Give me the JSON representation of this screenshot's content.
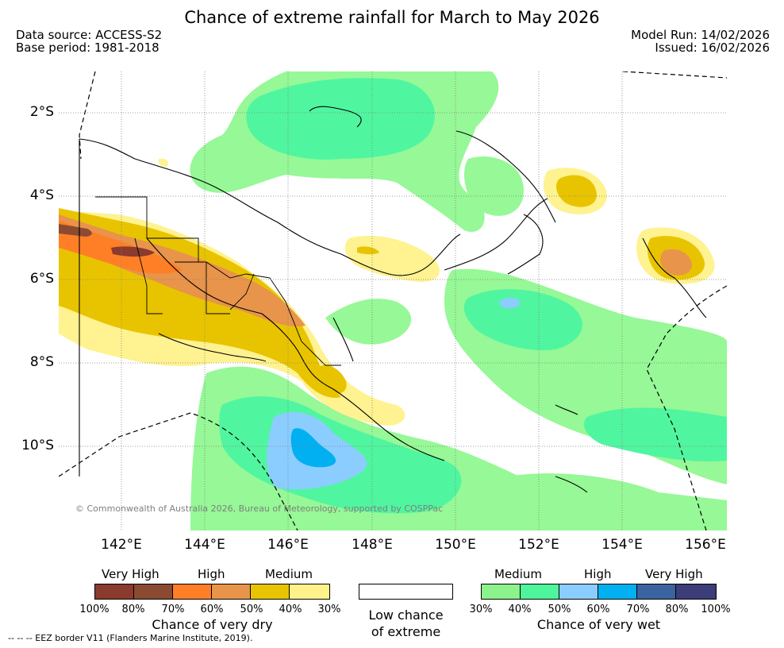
{
  "title": "Chance of extreme rainfall for March to May 2026",
  "meta": {
    "data_source": "Data source: ACCESS-S2",
    "base_period": "Base period: 1981-2018",
    "model_run": "Model Run: 14/02/2026",
    "issued": "Issued: 16/02/2026"
  },
  "map": {
    "lat_labels": [
      "2°S",
      "4°S",
      "6°S",
      "8°S",
      "10°S"
    ],
    "lon_labels": [
      "142°E",
      "144°E",
      "146°E",
      "148°E",
      "150°E",
      "152°E",
      "154°E",
      "156°E"
    ],
    "copyright": "© Commonwealth of Australia 2026, Bureau of Meteorology, supported by COSPPac"
  },
  "legend": {
    "dry": {
      "categories": [
        "Very High",
        "High",
        "Medium"
      ],
      "ticks": [
        "100%",
        "80%",
        "70%",
        "60%",
        "50%",
        "40%",
        "30%"
      ],
      "colors": [
        "#8b3a2e",
        "#8b4a32",
        "#ff7f27",
        "#e8944a",
        "#e8c400",
        "#fff28a"
      ],
      "title": "Chance of very dry"
    },
    "low": {
      "line1": "Low chance",
      "line2": "of extreme"
    },
    "wet": {
      "categories": [
        "Medium",
        "High",
        "Very High"
      ],
      "ticks": [
        "30%",
        "40%",
        "50%",
        "60%",
        "70%",
        "80%",
        "100%"
      ],
      "colors": [
        "#8cf28c",
        "#4ff59a",
        "#8ccdff",
        "#00b0f0",
        "#3a63a0",
        "#3d3d7a"
      ],
      "title": "Chance of very wet"
    },
    "eez_note": "-- -- -- EEZ border V11 (Flanders Marine Institute, 2019)."
  }
}
